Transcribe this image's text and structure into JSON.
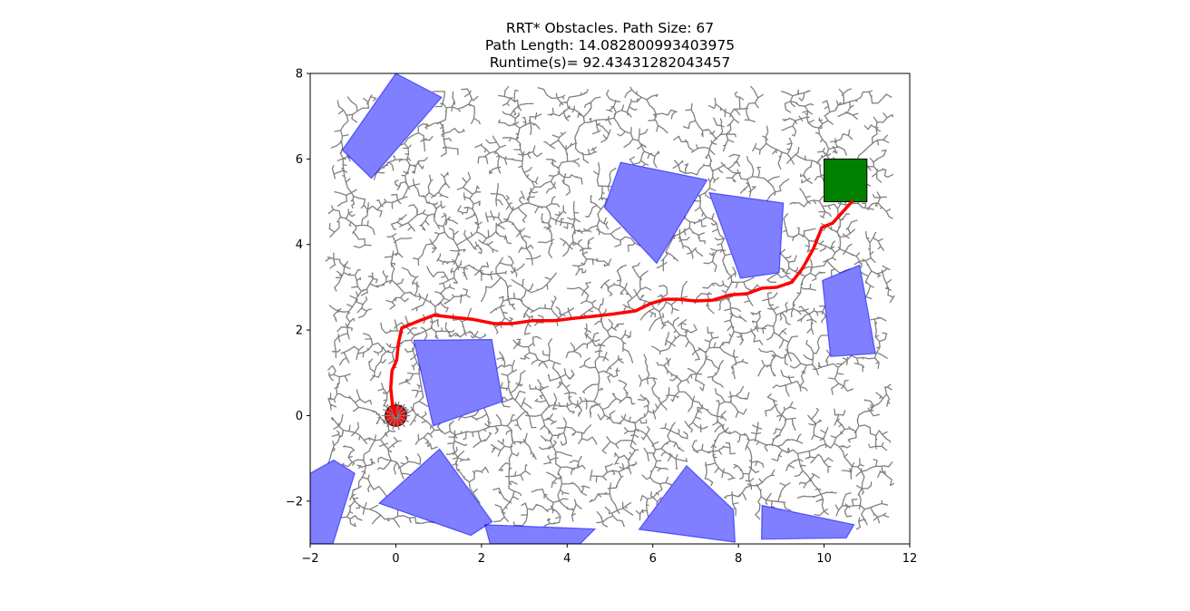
{
  "chart_data": {
    "type": "scatter",
    "title_lines": [
      "RRT* Obstacles. Path Size: 67",
      "Path Length: 14.082800993403975",
      "Runtime(s)= 92.43431282043457"
    ],
    "xlabel": "",
    "ylabel": "",
    "xlim": [
      -2,
      12
    ],
    "ylim": [
      -3,
      8
    ],
    "x_ticks": [
      -2,
      0,
      2,
      4,
      6,
      8,
      10,
      12
    ],
    "y_ticks": [
      -2,
      0,
      2,
      4,
      6,
      8
    ],
    "grid": false,
    "colors": {
      "obstacle": "#0000ff",
      "tree": "#808080",
      "path": "#ff0000",
      "goal": "#008000",
      "start": "#ff0000"
    },
    "start": {
      "x": 0,
      "y": 0,
      "radius": 0.25
    },
    "goal": {
      "x0": 10,
      "y0": 5,
      "x1": 11,
      "y1": 6
    },
    "obstacles": [
      [
        [
          0.0,
          8.0
        ],
        [
          1.07,
          7.44
        ],
        [
          -0.57,
          5.55
        ],
        [
          -1.25,
          6.21
        ]
      ],
      [
        [
          5.25,
          5.92
        ],
        [
          7.27,
          5.51
        ],
        [
          6.09,
          3.56
        ],
        [
          4.87,
          4.87
        ]
      ],
      [
        [
          7.32,
          5.21
        ],
        [
          9.05,
          4.97
        ],
        [
          8.95,
          3.34
        ],
        [
          8.05,
          3.21
        ]
      ],
      [
        [
          10.83,
          3.52
        ],
        [
          9.96,
          3.16
        ],
        [
          10.15,
          1.38
        ],
        [
          11.2,
          1.45
        ]
      ],
      [
        [
          0.42,
          1.76
        ],
        [
          2.24,
          1.78
        ],
        [
          2.49,
          0.33
        ],
        [
          0.87,
          -0.24
        ]
      ],
      [
        [
          -2.0,
          -1.35
        ],
        [
          -1.45,
          -1.04
        ],
        [
          -0.96,
          -1.35
        ],
        [
          -1.47,
          -3.0
        ],
        [
          -2.0,
          -3.0
        ]
      ],
      [
        [
          1.02,
          -0.78
        ],
        [
          2.25,
          -2.48
        ],
        [
          1.75,
          -2.8
        ],
        [
          -0.39,
          -2.05
        ]
      ],
      [
        [
          2.08,
          -2.55
        ],
        [
          4.65,
          -2.65
        ],
        [
          4.3,
          -3.0
        ],
        [
          2.2,
          -3.0
        ]
      ],
      [
        [
          6.79,
          -1.17
        ],
        [
          7.88,
          -2.2
        ],
        [
          7.92,
          -2.96
        ],
        [
          5.68,
          -2.66
        ]
      ],
      [
        [
          8.55,
          -2.1
        ],
        [
          10.7,
          -2.55
        ],
        [
          10.52,
          -2.86
        ],
        [
          8.54,
          -2.89
        ]
      ]
    ],
    "path": [
      [
        0.0,
        0.0
      ],
      [
        -0.08,
        0.25
      ],
      [
        -0.12,
        0.65
      ],
      [
        -0.09,
        1.05
      ],
      [
        0.02,
        1.3
      ],
      [
        0.06,
        1.7
      ],
      [
        0.14,
        2.05
      ],
      [
        0.5,
        2.2
      ],
      [
        0.9,
        2.35
      ],
      [
        1.3,
        2.3
      ],
      [
        1.8,
        2.25
      ],
      [
        2.3,
        2.15
      ],
      [
        2.7,
        2.15
      ],
      [
        3.2,
        2.22
      ],
      [
        3.7,
        2.22
      ],
      [
        4.2,
        2.28
      ],
      [
        4.6,
        2.32
      ],
      [
        5.1,
        2.38
      ],
      [
        5.6,
        2.45
      ],
      [
        5.95,
        2.62
      ],
      [
        6.3,
        2.72
      ],
      [
        6.6,
        2.72
      ],
      [
        7.0,
        2.68
      ],
      [
        7.4,
        2.7
      ],
      [
        7.8,
        2.82
      ],
      [
        8.2,
        2.85
      ],
      [
        8.55,
        2.98
      ],
      [
        8.9,
        3.0
      ],
      [
        9.25,
        3.12
      ],
      [
        9.5,
        3.45
      ],
      [
        9.75,
        3.9
      ],
      [
        9.95,
        4.4
      ],
      [
        10.2,
        4.5
      ],
      [
        10.45,
        4.78
      ],
      [
        10.65,
        5.0
      ]
    ]
  }
}
